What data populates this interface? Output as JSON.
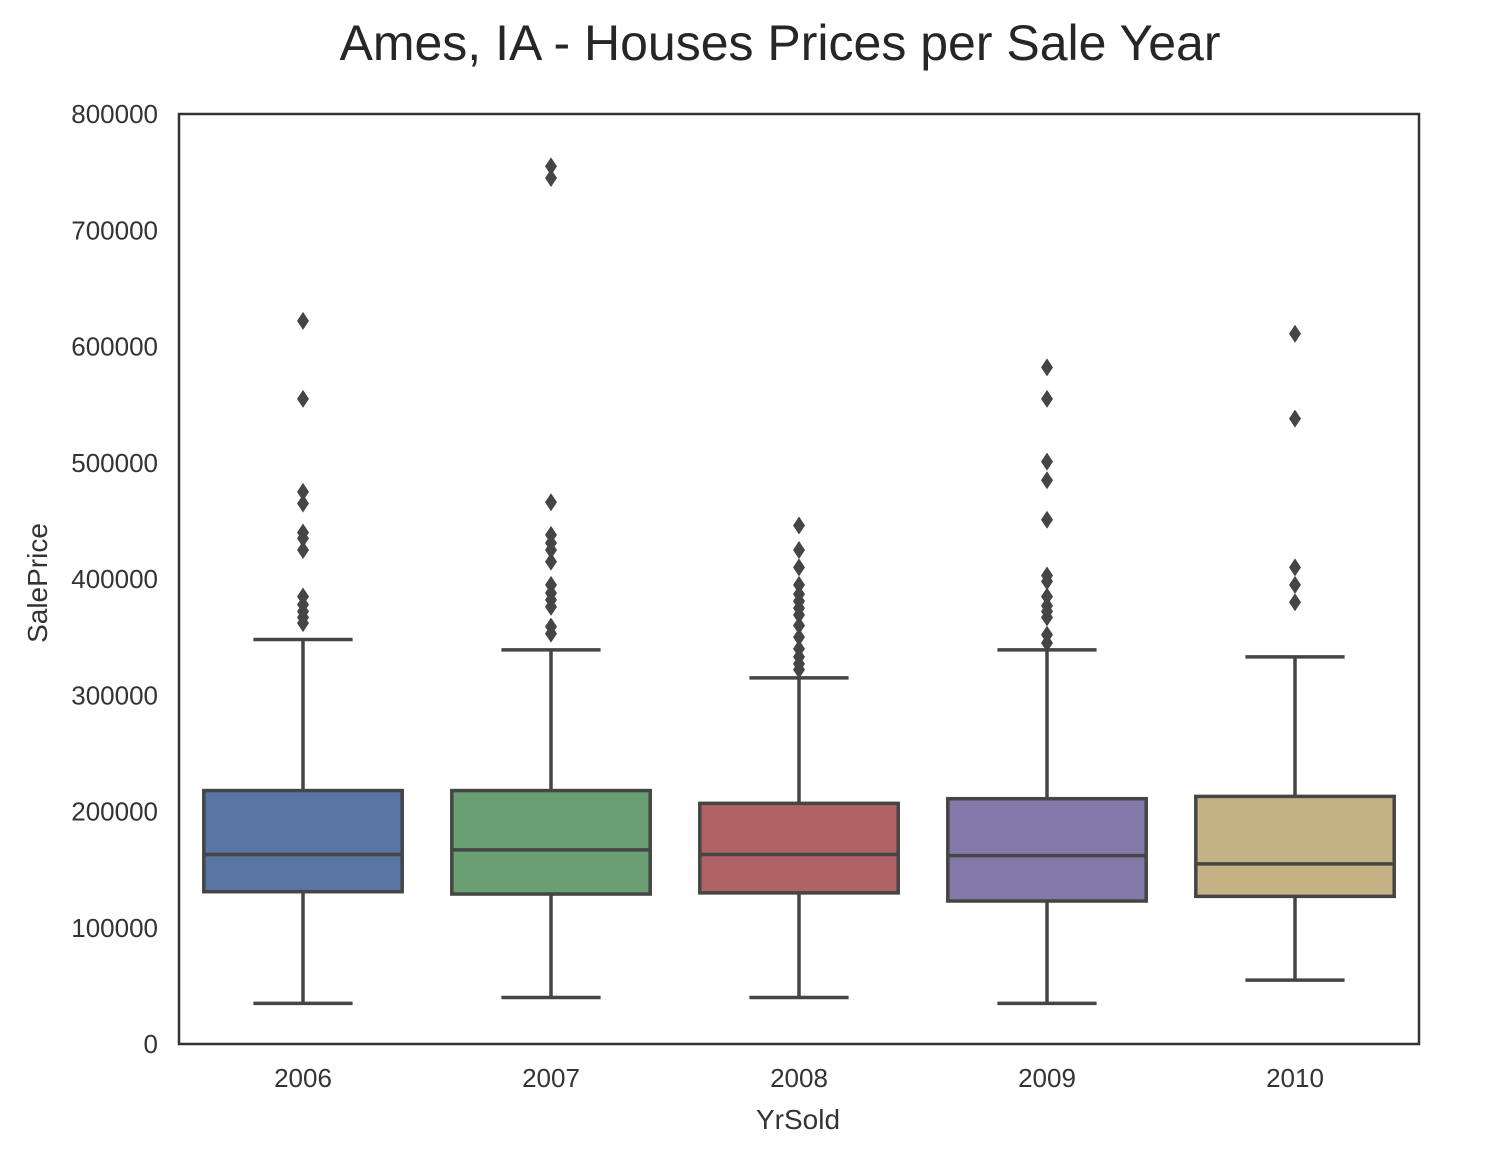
{
  "chart_data": {
    "type": "box",
    "title": "Ames, IA - Houses Prices per Sale Year",
    "xlabel": "YrSold",
    "ylabel": "SalePrice",
    "ylim": [
      0,
      800000
    ],
    "yticks": [
      "0",
      "100000",
      "200000",
      "300000",
      "400000",
      "500000",
      "600000",
      "700000",
      "800000"
    ],
    "categories": [
      "2006",
      "2007",
      "2008",
      "2009",
      "2010"
    ],
    "colors": [
      "#5875a4",
      "#6a9f73",
      "#b06364",
      "#8379a8",
      "#c3b283"
    ],
    "line_color": "#454545",
    "grid": false,
    "boxes": [
      {
        "category": "2006",
        "whisker_low": 35000,
        "q1": 131000,
        "median": 163000,
        "q3": 218000,
        "whisker_high": 348000,
        "outliers": [
          622000,
          555000,
          475000,
          465000,
          440000,
          435000,
          425000,
          385000,
          378000,
          372000,
          367000,
          362000
        ]
      },
      {
        "category": "2007",
        "whisker_low": 40000,
        "q1": 129000,
        "median": 167000,
        "q3": 218000,
        "whisker_high": 339000,
        "outliers": [
          755000,
          745000,
          466000,
          438000,
          431000,
          425000,
          415000,
          395000,
          388000,
          382000,
          376000,
          359000,
          353000
        ]
      },
      {
        "category": "2008",
        "whisker_low": 40000,
        "q1": 130000,
        "median": 163000,
        "q3": 207000,
        "whisker_high": 315000,
        "outliers": [
          446000,
          425000,
          410000,
          395000,
          387000,
          381000,
          375000,
          369000,
          360000,
          350000,
          340000,
          333000,
          327000,
          322000
        ]
      },
      {
        "category": "2009",
        "whisker_low": 35000,
        "q1": 123000,
        "median": 162000,
        "q3": 211000,
        "whisker_high": 339000,
        "outliers": [
          582000,
          555000,
          501000,
          485000,
          451000,
          403000,
          398000,
          385000,
          377000,
          372000,
          367000,
          352000,
          345000
        ]
      },
      {
        "category": "2010",
        "whisker_low": 55000,
        "q1": 127000,
        "median": 155000,
        "q3": 213000,
        "whisker_high": 333000,
        "outliers": [
          611000,
          538000,
          410000,
          395000,
          380000
        ]
      }
    ]
  }
}
